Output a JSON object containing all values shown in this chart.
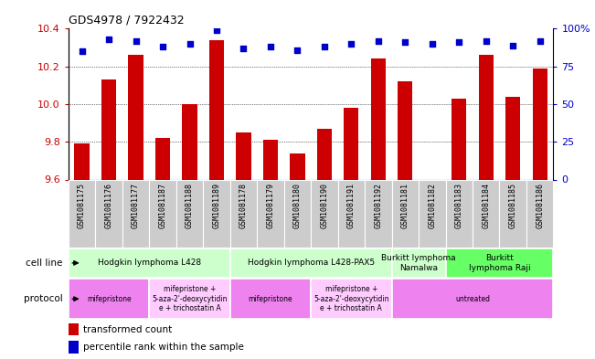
{
  "title": "GDS4978 / 7922432",
  "samples": [
    "GSM1081175",
    "GSM1081176",
    "GSM1081177",
    "GSM1081187",
    "GSM1081188",
    "GSM1081189",
    "GSM1081178",
    "GSM1081179",
    "GSM1081180",
    "GSM1081190",
    "GSM1081191",
    "GSM1081192",
    "GSM1081181",
    "GSM1081182",
    "GSM1081183",
    "GSM1081184",
    "GSM1081185",
    "GSM1081186"
  ],
  "bar_values": [
    9.79,
    10.13,
    10.26,
    9.82,
    10.0,
    10.34,
    9.85,
    9.81,
    9.74,
    9.87,
    9.98,
    10.24,
    10.12,
    9.6,
    10.03,
    10.26,
    10.04,
    10.19
  ],
  "dot_values": [
    85,
    93,
    92,
    88,
    90,
    99,
    87,
    88,
    86,
    88,
    90,
    92,
    91,
    90,
    91,
    92,
    89,
    92
  ],
  "bar_color": "#cc0000",
  "dot_color": "#0000cc",
  "ylim_left": [
    9.6,
    10.4
  ],
  "ylim_right": [
    0,
    100
  ],
  "yticks_left": [
    9.6,
    9.8,
    10.0,
    10.2,
    10.4
  ],
  "yticks_right": [
    0,
    25,
    50,
    75,
    100
  ],
  "ytick_labels_right": [
    "0",
    "25",
    "50",
    "75",
    "100%"
  ],
  "cell_line_groups": [
    {
      "label": "Hodgkin lymphoma L428",
      "start": 0,
      "end": 5,
      "color": "#ccffcc"
    },
    {
      "label": "Hodgkin lymphoma L428-PAX5",
      "start": 6,
      "end": 11,
      "color": "#ccffcc"
    },
    {
      "label": "Burkitt lymphoma\nNamalwa",
      "start": 12,
      "end": 13,
      "color": "#ccffcc"
    },
    {
      "label": "Burkitt\nlymphoma Raji",
      "start": 14,
      "end": 17,
      "color": "#66ff66"
    }
  ],
  "protocol_groups": [
    {
      "label": "mifepristone",
      "start": 0,
      "end": 2,
      "color": "#ee82ee"
    },
    {
      "label": "mifepristone +\n5-aza-2'-deoxycytidin\ne + trichostatin A",
      "start": 3,
      "end": 5,
      "color": "#ffccff"
    },
    {
      "label": "mifepristone",
      "start": 6,
      "end": 8,
      "color": "#ee82ee"
    },
    {
      "label": "mifepristone +\n5-aza-2'-deoxycytidin\ne + trichostatin A",
      "start": 9,
      "end": 11,
      "color": "#ffccff"
    },
    {
      "label": "untreated",
      "start": 12,
      "end": 17,
      "color": "#ee82ee"
    }
  ],
  "legend_bar_label": "transformed count",
  "legend_dot_label": "percentile rank within the sample",
  "cell_line_label": "cell line",
  "protocol_label": "protocol",
  "xticklabel_bg": "#cccccc"
}
